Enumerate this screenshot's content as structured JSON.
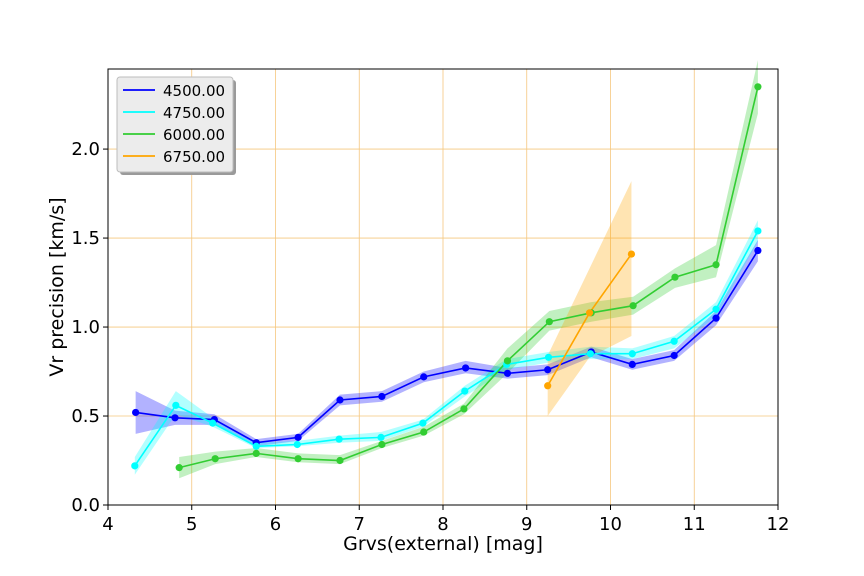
{
  "chart_data": {
    "type": "line",
    "xlabel": "Grvs(external) [mag]",
    "ylabel": "Vr precision [km/s]",
    "xlim": [
      4,
      12
    ],
    "ylim": [
      0,
      2.45
    ],
    "xticks": [
      4,
      5,
      6,
      7,
      8,
      9,
      10,
      11,
      12
    ],
    "yticks": [
      0.0,
      0.5,
      1.0,
      1.5,
      2.0
    ],
    "xtick_labels": [
      "4",
      "5",
      "6",
      "7",
      "8",
      "9",
      "10",
      "11",
      "12"
    ],
    "ytick_labels": [
      "0.0",
      "0.5",
      "1.0",
      "1.5",
      "2.0"
    ],
    "grid": true,
    "grid_color": "#f5c77e",
    "legend_placement": "top-left",
    "series": [
      {
        "name": "4500.00",
        "color": "#0000ff",
        "x": [
          4.33,
          4.8,
          5.27,
          5.77,
          6.27,
          6.77,
          7.27,
          7.77,
          8.27,
          8.77,
          9.25,
          9.77,
          10.26,
          10.76,
          11.26,
          11.76
        ],
        "y": [
          0.52,
          0.49,
          0.48,
          0.35,
          0.38,
          0.59,
          0.61,
          0.72,
          0.77,
          0.74,
          0.76,
          0.86,
          0.79,
          0.84,
          1.05,
          1.43
        ],
        "lo": [
          0.4,
          0.45,
          0.45,
          0.33,
          0.36,
          0.56,
          0.58,
          0.69,
          0.74,
          0.71,
          0.73,
          0.83,
          0.76,
          0.81,
          1.01,
          1.37
        ],
        "hi": [
          0.64,
          0.53,
          0.51,
          0.37,
          0.4,
          0.62,
          0.64,
          0.75,
          0.81,
          0.77,
          0.79,
          0.89,
          0.82,
          0.87,
          1.09,
          1.49
        ]
      },
      {
        "name": "4750.00",
        "color": "#00ffff",
        "x": [
          4.32,
          4.81,
          5.25,
          5.77,
          6.26,
          6.76,
          7.26,
          7.76,
          8.26,
          8.76,
          9.26,
          9.76,
          10.26,
          10.76,
          11.26,
          11.76
        ],
        "y": [
          0.22,
          0.56,
          0.46,
          0.33,
          0.34,
          0.37,
          0.38,
          0.46,
          0.64,
          0.79,
          0.83,
          0.85,
          0.85,
          0.92,
          1.1,
          1.54
        ],
        "lo": [
          0.17,
          0.51,
          0.44,
          0.32,
          0.33,
          0.35,
          0.36,
          0.44,
          0.61,
          0.76,
          0.8,
          0.82,
          0.82,
          0.88,
          1.06,
          1.48
        ],
        "hi": [
          0.27,
          0.64,
          0.49,
          0.35,
          0.36,
          0.39,
          0.41,
          0.48,
          0.67,
          0.82,
          0.86,
          0.89,
          0.88,
          0.95,
          1.14,
          1.6
        ]
      },
      {
        "name": "6000.00",
        "color": "#32cd32",
        "x": [
          4.85,
          5.28,
          5.77,
          6.27,
          6.77,
          7.27,
          7.77,
          8.25,
          8.77,
          9.27,
          9.77,
          10.27,
          10.77,
          11.26,
          11.76
        ],
        "y": [
          0.21,
          0.26,
          0.29,
          0.26,
          0.25,
          0.34,
          0.41,
          0.54,
          0.81,
          1.03,
          1.08,
          1.12,
          1.28,
          1.35,
          2.35
        ],
        "lo": [
          0.15,
          0.23,
          0.27,
          0.24,
          0.23,
          0.32,
          0.39,
          0.51,
          0.74,
          0.98,
          1.03,
          1.07,
          1.22,
          1.28,
          2.2
        ],
        "hi": [
          0.27,
          0.3,
          0.32,
          0.29,
          0.28,
          0.36,
          0.44,
          0.57,
          0.88,
          1.09,
          1.14,
          1.17,
          1.33,
          1.46,
          2.5
        ]
      },
      {
        "name": "6750.00",
        "color": "#ffa500",
        "x": [
          9.25,
          9.75,
          10.25
        ],
        "y": [
          0.67,
          1.08,
          1.41
        ],
        "lo": [
          0.5,
          0.83,
          0.95
        ],
        "hi": [
          0.84,
          1.33,
          1.82
        ]
      }
    ]
  }
}
